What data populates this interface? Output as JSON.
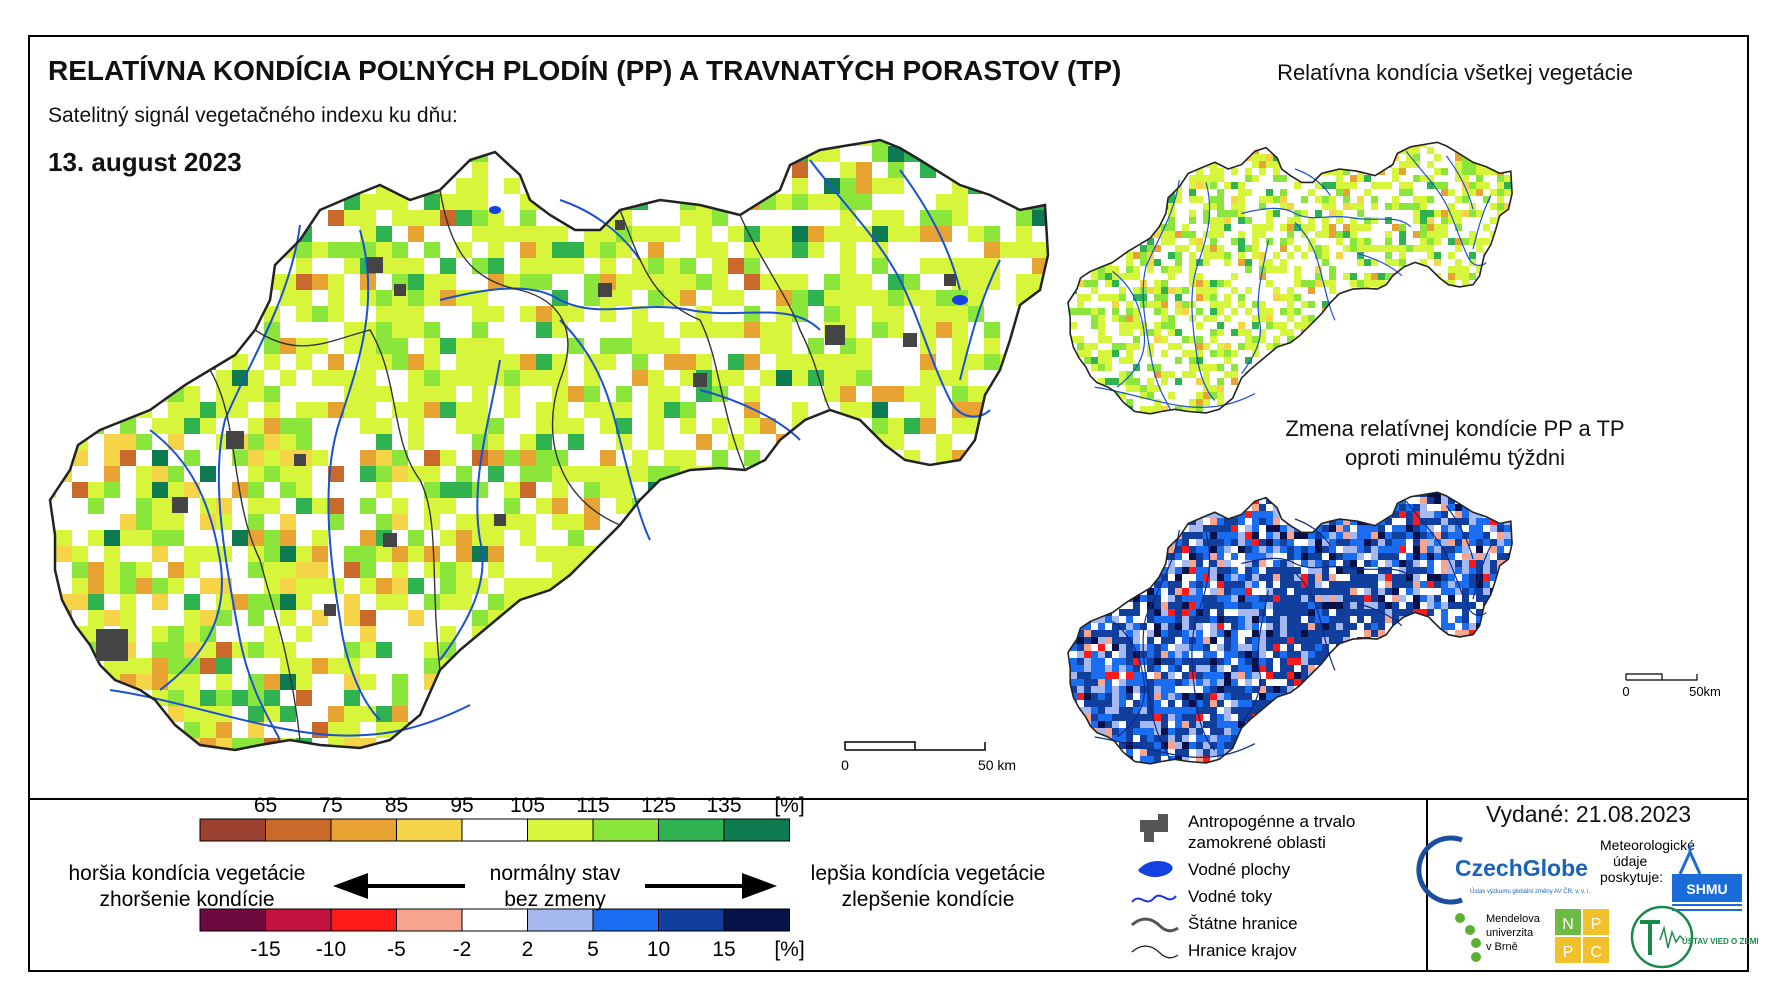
{
  "header": {
    "title": "RELATÍVNA KONDÍCIA POĽNÝCH PLODÍN (PP) A TRAVNATÝCH PORASTOV (TP)",
    "subtitle": "Satelitný signál vegetačného indexu ku dňu:",
    "date": "13. august 2023"
  },
  "insets": {
    "all_vegetation_title": "Relatívna kondícia všetkej vegetácie",
    "change_title_line1": "Zmena relatívnej kondície PP a TP",
    "change_title_line2": "oproti minulému týždni"
  },
  "scalebars": {
    "main": {
      "start": "0",
      "end": "50 km"
    },
    "inset": {
      "start": "0",
      "end": "50km"
    }
  },
  "legend_condition": {
    "ticks": [
      "65",
      "75",
      "85",
      "95",
      "105",
      "115",
      "125",
      "135",
      "[%]"
    ],
    "colors": [
      "#9c4030",
      "#c9692a",
      "#e8a432",
      "#f6d447",
      "#ffffff",
      "#d7f53a",
      "#8ae63a",
      "#2fb24f",
      "#0e7a50"
    ]
  },
  "legend_change": {
    "ticks": [
      "-15",
      "-10",
      "-5",
      "-2",
      "2",
      "5",
      "10",
      "15",
      "[%]"
    ],
    "colors": [
      "#6e0a3e",
      "#c4123f",
      "#ff1a1a",
      "#f8a58f",
      "#ffffff",
      "#a6b8f0",
      "#1a6cf0",
      "#103f9e",
      "#08124a"
    ]
  },
  "legend_labels": {
    "worse_line1": "horšia kondícia vegetácie",
    "worse_line2": "zhoršenie kondície",
    "normal_line1": "normálny stav",
    "normal_line2": "bez zmeny",
    "better_line1": "lepšia kondícia vegetácie",
    "better_line2": "zlepšenie kondície"
  },
  "map_key": {
    "urban_line1": "Antropogénne a trvalo",
    "urban_line2": "zamokrené oblasti",
    "water_bodies": "Vodné plochy",
    "rivers": "Vodné toky",
    "state_border": "Štátne hranice",
    "region_border": "Hranice krajov"
  },
  "footer": {
    "issued": "Vydané: 21.08.2023",
    "providers_label_line1": "Meteorologické",
    "providers_label_line2": "údaje",
    "providers_label_line3": "poskytuje:",
    "czechglobe": "CzechGlobe",
    "czechglobe_sub": "Ústav výzkumu globální změny AV ČR, v. v. i.",
    "shmu": "SHMU",
    "mendel_line1": "Mendelova",
    "mendel_line2": "univerzita",
    "mendel_line3": "v Brně",
    "nppc": [
      "N",
      "P",
      "P",
      "C"
    ],
    "uvz": "ÚSTAV VIED O ZEMI"
  }
}
